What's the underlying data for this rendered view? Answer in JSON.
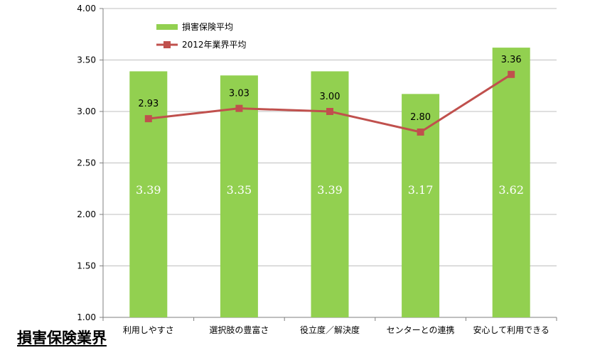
{
  "page": {
    "corner_title": "損害保険業界"
  },
  "colors": {
    "bar": "#92D050",
    "line": "#C0504D",
    "grid": "#BFBFBF",
    "axis": "#7F7F7F",
    "bar_label": "#FFFFFF"
  },
  "chart_data": {
    "type": "bar",
    "categories": [
      "利用しやすさ",
      "選択肢の豊富さ",
      "役立度／解決度",
      "センターとの連携",
      "安心して利用できる"
    ],
    "series": [
      {
        "name": "損害保険平均",
        "type": "bar",
        "values": [
          3.39,
          3.35,
          3.39,
          3.17,
          3.62
        ]
      },
      {
        "name": "2012年業界平均",
        "type": "line",
        "marker": "square",
        "values": [
          2.93,
          3.03,
          3.0,
          2.8,
          3.36
        ]
      }
    ],
    "yticks": [
      "1.00",
      "1.50",
      "2.00",
      "2.50",
      "3.00",
      "3.50",
      "4.00"
    ],
    "ylim": [
      1.0,
      4.0
    ],
    "grid": true,
    "legend_position": "top-left"
  }
}
